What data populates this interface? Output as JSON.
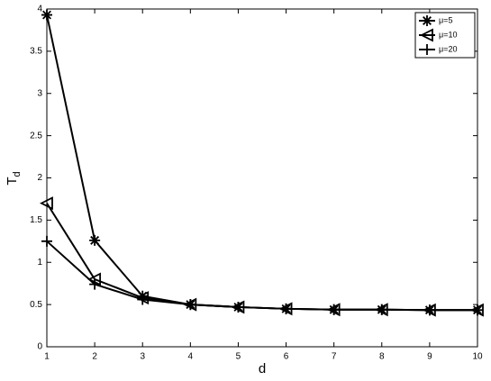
{
  "chart_data": {
    "type": "line",
    "xlabel": "d",
    "ylabel": {
      "text": "T",
      "subscript": "d"
    },
    "x": [
      1,
      2,
      3,
      4,
      5,
      6,
      7,
      8,
      9,
      10
    ],
    "series": [
      {
        "name": "μ=5",
        "color": "#000000",
        "marker": "asterisk",
        "values": [
          3.93,
          1.26,
          0.6,
          0.5,
          0.47,
          0.45,
          0.44,
          0.44,
          0.435,
          0.435
        ]
      },
      {
        "name": "μ=10",
        "color": "#000000",
        "marker": "triangle-left",
        "values": [
          1.7,
          0.8,
          0.58,
          0.5,
          0.47,
          0.45,
          0.44,
          0.44,
          0.435,
          0.435
        ]
      },
      {
        "name": "μ=20",
        "color": "#000000",
        "marker": "plus",
        "values": [
          1.25,
          0.74,
          0.56,
          0.5,
          0.47,
          0.45,
          0.44,
          0.44,
          0.435,
          0.435
        ]
      }
    ],
    "xlim": [
      1,
      10
    ],
    "xticks": [
      1,
      2,
      3,
      4,
      5,
      6,
      7,
      8,
      9,
      10
    ],
    "ylim": [
      0,
      4
    ],
    "yticks": [
      0,
      0.5,
      1,
      1.5,
      2,
      2.5,
      3,
      3.5,
      4
    ],
    "grid": false,
    "legend": "upper right"
  }
}
